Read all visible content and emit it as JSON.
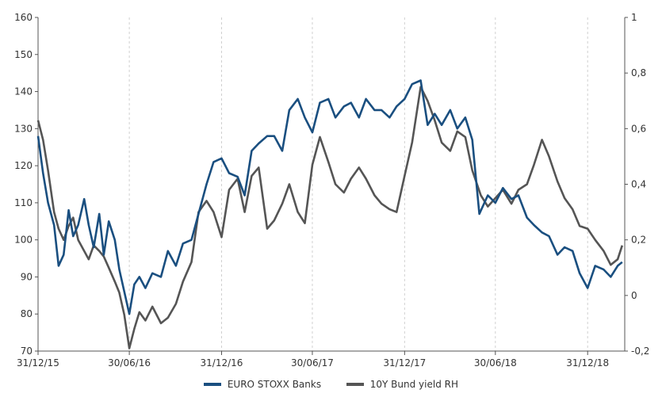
{
  "chart_data": {
    "type": "line",
    "title": "",
    "xlabel": "",
    "ylabel": "",
    "x_tick_labels": [
      "31/12/15",
      "30/06/16",
      "31/12/16",
      "30/06/17",
      "31/12/17",
      "30/06/18",
      "31/12/18"
    ],
    "x_tick_dates": [
      "2015-12-31",
      "2016-06-30",
      "2016-12-31",
      "2017-06-30",
      "2017-12-31",
      "2018-06-30",
      "2018-12-31"
    ],
    "xlim": [
      "2015-12-31",
      "2019-03-15"
    ],
    "ylim_left": [
      70,
      160
    ],
    "yticks_left": [
      70,
      80,
      90,
      100,
      110,
      120,
      130,
      140,
      150,
      160
    ],
    "ylim_right": [
      -0.2,
      1
    ],
    "yticks_right": [
      -0.2,
      0,
      0.2,
      0.4,
      0.6,
      0.8,
      1
    ],
    "ytick_labels_right": [
      "-0,2",
      "0",
      "0,2",
      "0,4",
      "0,6",
      "0,8",
      "1"
    ],
    "grid": "vertical dashed",
    "legend_position": "bottom",
    "series": [
      {
        "name": "EURO STOXX Banks",
        "axis": "left",
        "color": "#1a4f80",
        "x": [
          "2015-12-31",
          "2016-01-10",
          "2016-01-20",
          "2016-02-01",
          "2016-02-10",
          "2016-02-20",
          "2016-03-01",
          "2016-03-10",
          "2016-03-20",
          "2016-04-01",
          "2016-04-10",
          "2016-04-20",
          "2016-05-01",
          "2016-05-10",
          "2016-05-20",
          "2016-06-01",
          "2016-06-10",
          "2016-06-20",
          "2016-06-30",
          "2016-07-10",
          "2016-07-20",
          "2016-08-01",
          "2016-08-15",
          "2016-09-01",
          "2016-09-15",
          "2016-10-01",
          "2016-10-15",
          "2016-11-01",
          "2016-11-15",
          "2016-12-01",
          "2016-12-15",
          "2016-12-31",
          "2017-01-15",
          "2017-02-01",
          "2017-02-15",
          "2017-03-01",
          "2017-03-15",
          "2017-04-01",
          "2017-04-15",
          "2017-05-01",
          "2017-05-15",
          "2017-06-01",
          "2017-06-15",
          "2017-06-30",
          "2017-07-15",
          "2017-08-01",
          "2017-08-15",
          "2017-09-01",
          "2017-09-15",
          "2017-10-01",
          "2017-10-15",
          "2017-11-01",
          "2017-11-15",
          "2017-12-01",
          "2017-12-15",
          "2017-12-31",
          "2018-01-15",
          "2018-02-01",
          "2018-02-15",
          "2018-03-01",
          "2018-03-15",
          "2018-04-01",
          "2018-04-15",
          "2018-05-01",
          "2018-05-15",
          "2018-05-29",
          "2018-06-15",
          "2018-06-30",
          "2018-07-15",
          "2018-08-01",
          "2018-08-15",
          "2018-09-01",
          "2018-09-15",
          "2018-10-01",
          "2018-10-15",
          "2018-11-01",
          "2018-11-15",
          "2018-12-01",
          "2018-12-15",
          "2018-12-31",
          "2019-01-15",
          "2019-02-01",
          "2019-02-15",
          "2019-03-01",
          "2019-03-10"
        ],
        "values": [
          128,
          118,
          110,
          104,
          93,
          96,
          108,
          101,
          104,
          111,
          104,
          98,
          107,
          96,
          105,
          100,
          92,
          86,
          80,
          88,
          90,
          87,
          91,
          90,
          97,
          93,
          99,
          100,
          107,
          115,
          121,
          122,
          118,
          117,
          112,
          124,
          126,
          128,
          128,
          124,
          135,
          138,
          133,
          129,
          137,
          138,
          133,
          136,
          137,
          133,
          138,
          135,
          135,
          133,
          136,
          138,
          142,
          143,
          131,
          134,
          131,
          135,
          130,
          133,
          127,
          107,
          112,
          110,
          114,
          111,
          112,
          106,
          104,
          102,
          101,
          96,
          98,
          97,
          91,
          87,
          93,
          92,
          90,
          93,
          94
        ]
      },
      {
        "name": "10Y Bund yield RH",
        "axis": "right",
        "color": "#555555",
        "x": [
          "2015-12-31",
          "2016-01-10",
          "2016-01-20",
          "2016-02-01",
          "2016-02-10",
          "2016-02-20",
          "2016-03-01",
          "2016-03-10",
          "2016-03-20",
          "2016-04-01",
          "2016-04-10",
          "2016-04-20",
          "2016-05-01",
          "2016-05-10",
          "2016-05-20",
          "2016-06-01",
          "2016-06-10",
          "2016-06-20",
          "2016-06-30",
          "2016-07-10",
          "2016-07-20",
          "2016-08-01",
          "2016-08-15",
          "2016-09-01",
          "2016-09-15",
          "2016-10-01",
          "2016-10-15",
          "2016-11-01",
          "2016-11-15",
          "2016-12-01",
          "2016-12-15",
          "2016-12-31",
          "2017-01-15",
          "2017-02-01",
          "2017-02-15",
          "2017-03-01",
          "2017-03-15",
          "2017-04-01",
          "2017-04-15",
          "2017-05-01",
          "2017-05-15",
          "2017-06-01",
          "2017-06-15",
          "2017-06-30",
          "2017-07-15",
          "2017-08-01",
          "2017-08-15",
          "2017-09-01",
          "2017-09-15",
          "2017-10-01",
          "2017-10-15",
          "2017-11-01",
          "2017-11-15",
          "2017-12-01",
          "2017-12-15",
          "2017-12-31",
          "2018-01-15",
          "2018-02-01",
          "2018-02-15",
          "2018-03-01",
          "2018-03-15",
          "2018-04-01",
          "2018-04-15",
          "2018-05-01",
          "2018-05-15",
          "2018-06-01",
          "2018-06-15",
          "2018-06-30",
          "2018-07-15",
          "2018-08-01",
          "2018-08-15",
          "2018-09-01",
          "2018-09-15",
          "2018-10-01",
          "2018-10-15",
          "2018-11-01",
          "2018-11-15",
          "2018-12-01",
          "2018-12-15",
          "2018-12-31",
          "2019-01-15",
          "2019-02-01",
          "2019-02-15",
          "2019-03-01",
          "2019-03-10"
        ],
        "values": [
          0.63,
          0.56,
          0.45,
          0.3,
          0.24,
          0.2,
          0.25,
          0.28,
          0.2,
          0.16,
          0.13,
          0.18,
          0.16,
          0.14,
          0.1,
          0.05,
          0.01,
          -0.07,
          -0.19,
          -0.12,
          -0.06,
          -0.09,
          -0.04,
          -0.1,
          -0.08,
          -0.03,
          0.05,
          0.12,
          0.3,
          0.34,
          0.3,
          0.21,
          0.38,
          0.42,
          0.3,
          0.43,
          0.46,
          0.24,
          0.27,
          0.33,
          0.4,
          0.3,
          0.26,
          0.47,
          0.57,
          0.48,
          0.4,
          0.37,
          0.42,
          0.46,
          0.42,
          0.36,
          0.33,
          0.31,
          0.3,
          0.43,
          0.55,
          0.75,
          0.7,
          0.63,
          0.55,
          0.52,
          0.59,
          0.57,
          0.45,
          0.36,
          0.32,
          0.35,
          0.38,
          0.33,
          0.38,
          0.4,
          0.47,
          0.56,
          0.5,
          0.41,
          0.35,
          0.31,
          0.25,
          0.24,
          0.2,
          0.16,
          0.11,
          0.13,
          0.18
        ]
      }
    ]
  }
}
